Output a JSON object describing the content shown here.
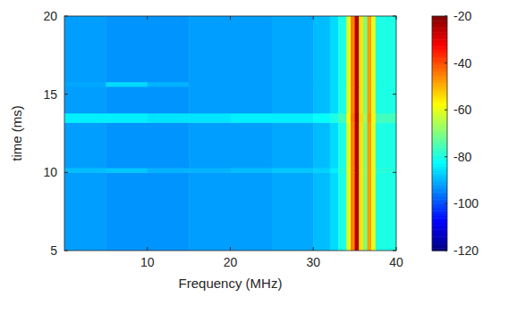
{
  "chart_data": {
    "type": "heatmap",
    "xlabel": "Frequency (MHz)",
    "ylabel": "time (ms)",
    "x_edges": [
      0,
      5,
      10,
      15,
      20,
      25,
      30,
      32,
      33,
      34,
      34.5,
      35,
      35.5,
      36,
      36.5,
      37,
      37.5,
      40
    ],
    "y_edges": [
      5,
      10,
      10.3,
      13.2,
      13.8,
      15.5,
      15.8,
      20
    ],
    "cells": [
      [
        -92,
        -93,
        -93,
        -92,
        -92,
        -91,
        -89,
        -86,
        -80,
        -60,
        -45,
        -25,
        -55,
        -70,
        -48,
        -60,
        -80
      ],
      [
        -89,
        -88,
        -90,
        -90,
        -89,
        -88,
        -87,
        -84,
        -79,
        -60,
        -45,
        -25,
        -55,
        -70,
        -48,
        -60,
        -79
      ],
      [
        -92,
        -93,
        -93,
        -92,
        -92,
        -91,
        -89,
        -86,
        -80,
        -60,
        -45,
        -25,
        -55,
        -70,
        -48,
        -60,
        -80
      ],
      [
        -84,
        -84,
        -85,
        -85,
        -84,
        -84,
        -82,
        -80,
        -76,
        -58,
        -44,
        -24,
        -54,
        -68,
        -47,
        -59,
        -76
      ],
      [
        -92,
        -93,
        -93,
        -92,
        -92,
        -91,
        -89,
        -86,
        -80,
        -60,
        -45,
        -25,
        -55,
        -70,
        -48,
        -60,
        -80
      ],
      [
        -91,
        -86,
        -90,
        -92,
        -92,
        -91,
        -89,
        -86,
        -80,
        -60,
        -45,
        -25,
        -55,
        -70,
        -48,
        -60,
        -80
      ],
      [
        -92,
        -93,
        -93,
        -92,
        -92,
        -91,
        -89,
        -86,
        -80,
        -60,
        -45,
        -25,
        -55,
        -70,
        -48,
        -60,
        -80
      ]
    ],
    "xlim": [
      0,
      40
    ],
    "ylim": [
      5,
      20
    ],
    "xticks": [
      10,
      20,
      30,
      40
    ],
    "yticks": [
      5,
      10,
      15,
      20
    ],
    "colorbar_lim": [
      -120,
      -20
    ],
    "colorbar_ticks": [
      -120,
      -100,
      -80,
      -60,
      -40,
      -20
    ],
    "color": "jet"
  }
}
